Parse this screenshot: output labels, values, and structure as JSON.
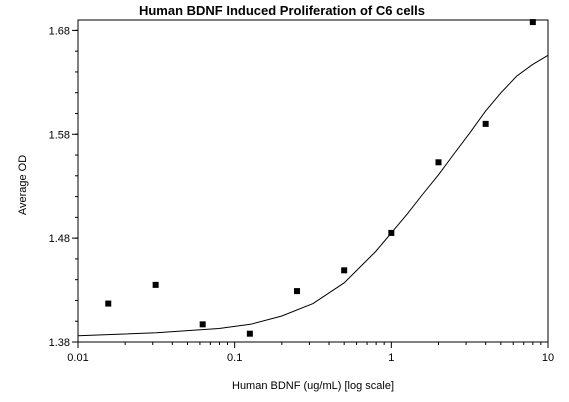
{
  "chart_data": {
    "type": "scatter",
    "title": "Human BDNF Induced Proliferation of C6 cells",
    "xlabel": "Human BDNF (ug/mL) [log scale]",
    "ylabel": "Average OD",
    "x_scale": "log",
    "xlim": [
      0.01,
      10
    ],
    "ylim": [
      1.38,
      1.69
    ],
    "x_ticks": [
      0.01,
      0.1,
      1,
      10
    ],
    "x_tick_labels": [
      "0.01",
      "0.1",
      "1",
      "10"
    ],
    "y_ticks": [
      1.38,
      1.48,
      1.58,
      1.68
    ],
    "y_tick_labels": [
      "1.38",
      "1.48",
      "1.58",
      "1.68"
    ],
    "grid": false,
    "series": [
      {
        "kind": "points",
        "marker": "square",
        "x": [
          0.0156,
          0.0313,
          0.0625,
          0.125,
          0.25,
          0.5,
          1,
          2,
          4,
          8
        ],
        "y": [
          1.417,
          1.435,
          1.397,
          1.388,
          1.429,
          1.449,
          1.485,
          1.553,
          1.59,
          1.688
        ]
      },
      {
        "kind": "fit-curve",
        "x": [
          0.01,
          0.0316,
          0.0794,
          0.126,
          0.2,
          0.316,
          0.5,
          0.794,
          1,
          1.26,
          1.58,
          2,
          2.51,
          3.16,
          3.98,
          5.01,
          6.31,
          7.94,
          10
        ],
        "y": [
          1.386,
          1.389,
          1.393,
          1.397,
          1.405,
          1.417,
          1.437,
          1.467,
          1.485,
          1.503,
          1.522,
          1.541,
          1.561,
          1.581,
          1.602,
          1.62,
          1.636,
          1.647,
          1.656
        ]
      }
    ]
  }
}
